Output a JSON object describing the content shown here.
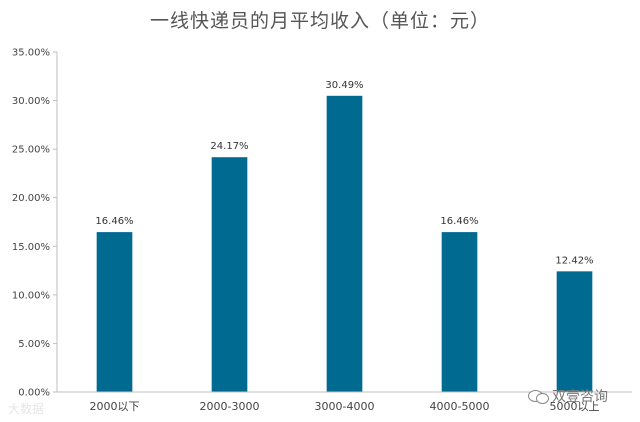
{
  "chart_data": {
    "type": "bar",
    "title": "一线快递员的月平均收入（单位：元）",
    "categories": [
      "2000以下",
      "2000-3000",
      "3000-4000",
      "4000-5000",
      "5000以上"
    ],
    "values": [
      16.46,
      24.17,
      30.49,
      16.46,
      12.42
    ],
    "value_labels": [
      "16.46%",
      "24.17%",
      "30.49%",
      "16.46%",
      "12.42%"
    ],
    "y_ticks": [
      0,
      5,
      10,
      15,
      20,
      25,
      30,
      35
    ],
    "y_tick_labels": [
      "0.00%",
      "5.00%",
      "10.00%",
      "15.00%",
      "20.00%",
      "25.00%",
      "30.00%",
      "35.00%"
    ],
    "ylim": [
      0,
      35
    ],
    "grid": false,
    "legend": "none",
    "bar_color": "#006a91",
    "axis_color": "#bfbfbf"
  },
  "watermarks": {
    "left_text": "大数据",
    "right_text": "双壹咨询",
    "right_icon": "wechat-icon"
  }
}
